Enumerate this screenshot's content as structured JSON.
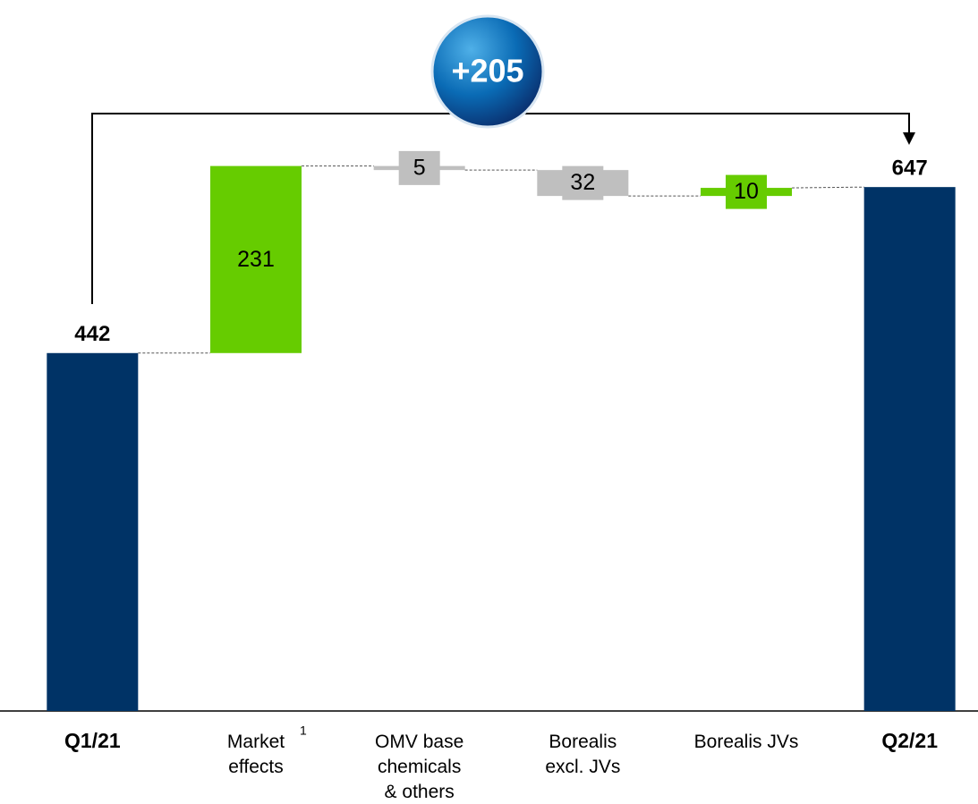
{
  "chart_data": {
    "type": "waterfall",
    "categories": [
      "Q1/21",
      "Market\neffects",
      "OMV base\nchemicals\n& others",
      "Borealis\nexcl. JVs",
      "Borealis JVs",
      "Q2/21"
    ],
    "category_notes": [
      null,
      "1",
      null,
      null,
      null,
      null
    ],
    "values": [
      442,
      231,
      -5,
      -32,
      10,
      647
    ],
    "value_labels": [
      "442",
      "231",
      "5",
      "32",
      "10",
      "647"
    ],
    "is_total": [
      true,
      false,
      false,
      false,
      false,
      true
    ],
    "colors": [
      "#003366",
      "#66cc00",
      "#bfbfbf",
      "#bfbfbf",
      "#66cc00",
      "#003366"
    ],
    "ylim": [
      0,
      878
    ],
    "annotation": "+205"
  }
}
